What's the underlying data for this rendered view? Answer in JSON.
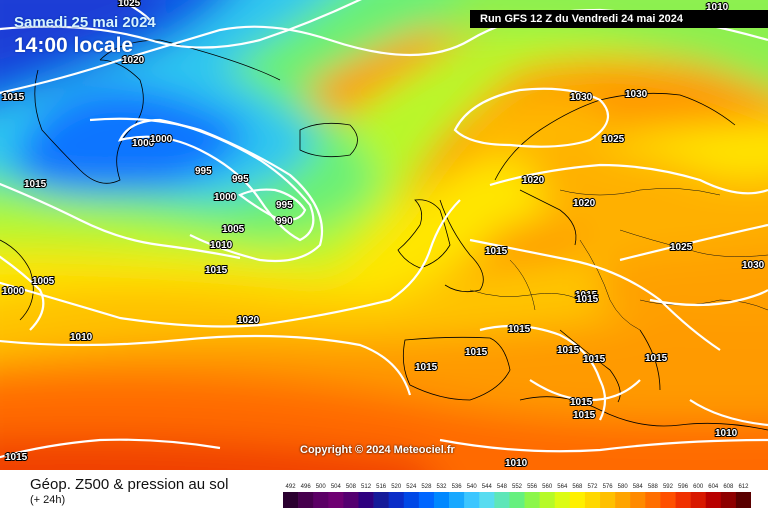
{
  "header": {
    "date": "Samedi 25 mai 2024",
    "time": "14:00 locale",
    "run": "Run GFS 12 Z du Vendredi 24 mai 2024"
  },
  "copyright": "Copyright © 2024 Meteociel.fr",
  "footer": {
    "title": "Géop. Z500 & pression au sol",
    "subtitle": "(+ 24h)"
  },
  "isobar_labels": [
    {
      "v": "1025"
    },
    {
      "v": "1010"
    },
    {
      "v": "1020"
    },
    {
      "v": "1015"
    },
    {
      "v": "1030"
    },
    {
      "v": "1030"
    },
    {
      "v": "1000"
    },
    {
      "v": "1000"
    },
    {
      "v": "995"
    },
    {
      "v": "995"
    },
    {
      "v": "1025"
    },
    {
      "v": "1015"
    },
    {
      "v": "1000"
    },
    {
      "v": "995"
    },
    {
      "v": "990"
    },
    {
      "v": "1020"
    },
    {
      "v": "1005"
    },
    {
      "v": "1010"
    },
    {
      "v": "1020"
    },
    {
      "v": "1015"
    },
    {
      "v": "1015"
    },
    {
      "v": "1025"
    },
    {
      "v": "1030"
    },
    {
      "v": "1005"
    },
    {
      "v": "1000"
    },
    {
      "v": "1015"
    },
    {
      "v": "1015"
    },
    {
      "v": "1020"
    },
    {
      "v": "1010"
    },
    {
      "v": "1015"
    },
    {
      "v": "1015"
    },
    {
      "v": "1015"
    },
    {
      "v": "1015"
    },
    {
      "v": "1015"
    },
    {
      "v": "1015"
    },
    {
      "v": "1015"
    },
    {
      "v": "1015"
    },
    {
      "v": "1015"
    },
    {
      "v": "1010"
    },
    {
      "v": "1010"
    }
  ],
  "scale": {
    "labels": [
      "492",
      "496",
      "500",
      "504",
      "508",
      "512",
      "516",
      "520",
      "524",
      "528",
      "532",
      "536",
      "540",
      "544",
      "548",
      "552",
      "556",
      "560",
      "564",
      "568",
      "572",
      "576",
      "580",
      "584",
      "588",
      "592",
      "596",
      "600",
      "604",
      "608",
      "612"
    ],
    "colors": [
      "#2b0030",
      "#46004d",
      "#5c0066",
      "#6e0072",
      "#540070",
      "#2e007f",
      "#151a99",
      "#0a2cc7",
      "#0048e6",
      "#0066ff",
      "#0088ff",
      "#18a8ff",
      "#3cc6ff",
      "#58dcf0",
      "#5ee6b8",
      "#66f07e",
      "#8cf64a",
      "#b6fa28",
      "#dcfc14",
      "#fff000",
      "#ffd800",
      "#ffc000",
      "#ffa400",
      "#ff8a00",
      "#ff6e00",
      "#ff5000",
      "#f03000",
      "#d81800",
      "#b80000",
      "#8e0000",
      "#5a0000"
    ]
  }
}
